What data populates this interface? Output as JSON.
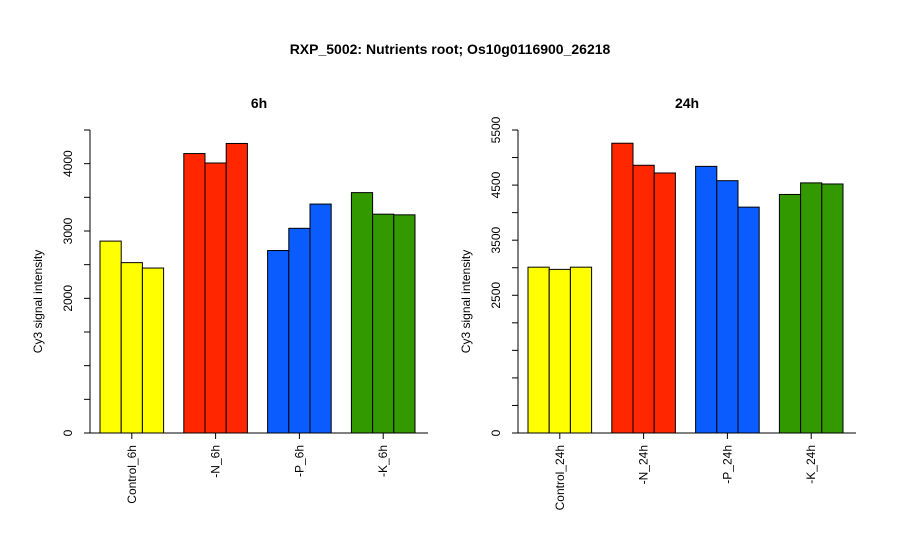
{
  "title": "RXP_5002: Nutrients root; Os10g0116900_26218",
  "chart_data": [
    {
      "type": "bar",
      "title": "6h",
      "ylabel": "Cy3 signal intensity",
      "ylim": [
        0,
        4500
      ],
      "yticks": [
        0,
        2000,
        3000,
        4000
      ],
      "categories": [
        "Control_6h",
        "-N_6h",
        "-P_6h",
        "-K_6h"
      ],
      "colors": [
        "#ffff00",
        "#ff2600",
        "#0a5cff",
        "#339900"
      ],
      "values": [
        [
          2850,
          2530,
          2450
        ],
        [
          4150,
          4010,
          4300
        ],
        [
          2710,
          3040,
          3400
        ],
        [
          3570,
          3250,
          3240
        ]
      ]
    },
    {
      "type": "bar",
      "title": "24h",
      "ylabel": "Cy3 signal intensity",
      "ylim": [
        0,
        5500
      ],
      "yticks": [
        0,
        2500,
        3500,
        4500,
        5500
      ],
      "categories": [
        "Control_24h",
        "-N_24h",
        "-P_24h",
        "-K_24h"
      ],
      "colors": [
        "#ffff00",
        "#ff2600",
        "#0a5cff",
        "#339900"
      ],
      "values": [
        [
          3010,
          2970,
          3010
        ],
        [
          5260,
          4860,
          4720
        ],
        [
          4840,
          4580,
          4100
        ],
        [
          4330,
          4540,
          4520
        ]
      ]
    }
  ]
}
